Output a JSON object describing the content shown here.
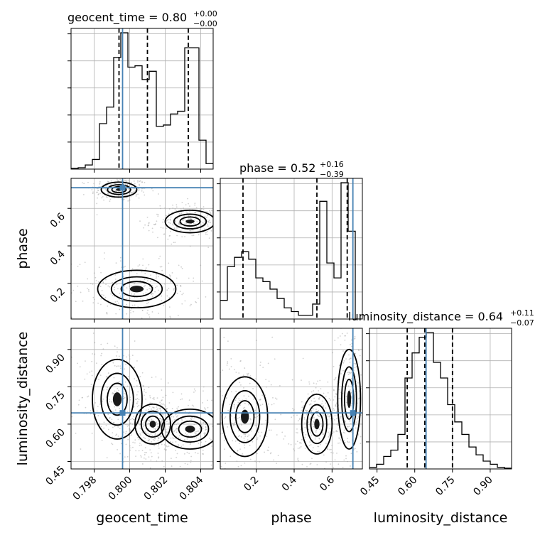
{
  "chart_data": {
    "type": "corner",
    "parameters": [
      "geocent_time",
      "phase",
      "luminosity_distance"
    ],
    "truth": {
      "geocent_time": 0.7996,
      "phase": 0.71,
      "luminosity_distance": 0.645
    },
    "quantiles": {
      "geocent_time": [
        0.7994,
        0.801,
        0.8033
      ],
      "phase": [
        0.13,
        0.52,
        0.68
      ],
      "luminosity_distance": [
        0.57,
        0.64,
        0.75
      ]
    },
    "titles": {
      "geocent_time": {
        "name": "geocent_time",
        "value": "0.80",
        "plus": "+0.00",
        "minus": "−0.00"
      },
      "phase": {
        "name": "phase",
        "value": "0.52",
        "plus": "+0.16",
        "minus": "−0.39"
      },
      "luminosity_distance": {
        "name": "luminosity_distance",
        "value": "0.64",
        "plus": "+0.11",
        "minus": "−0.07"
      }
    },
    "axes": {
      "geocent_time": {
        "range": [
          0.7967,
          0.8047
        ],
        "ticks": [
          0.798,
          0.8,
          0.802,
          0.804
        ],
        "tick_labels": [
          "0.798",
          "0.800",
          "0.802",
          "0.804"
        ]
      },
      "phase": {
        "range": [
          0.01,
          0.76
        ],
        "ticks": [
          0.2,
          0.4,
          0.6
        ],
        "tick_labels": [
          "0.2",
          "0.4",
          "0.6"
        ]
      },
      "luminosity_distance": {
        "range": [
          0.42,
          0.985
        ],
        "ticks": [
          0.45,
          0.6,
          0.75,
          0.9
        ],
        "tick_labels": [
          "0.45",
          "0.60",
          "0.75",
          "0.90"
        ]
      }
    },
    "histograms": {
      "geocent_time": {
        "bin_edges": [
          0.7967,
          0.7971,
          0.7975,
          0.7979,
          0.7983,
          0.7987,
          0.7991,
          0.7995,
          0.7999,
          0.8003,
          0.8007,
          0.8011,
          0.8015,
          0.8019,
          0.8023,
          0.8027,
          0.8031,
          0.8035,
          0.8039,
          0.8043,
          0.8047
        ],
        "counts": [
          0.5,
          1,
          3,
          7,
          33,
          45,
          81,
          99,
          74,
          75,
          65,
          71,
          31,
          32,
          40,
          42,
          88,
          88,
          21,
          4
        ]
      },
      "phase": {
        "bin_edges": [
          0.01,
          0.0475,
          0.085,
          0.1225,
          0.16,
          0.1975,
          0.235,
          0.2725,
          0.31,
          0.3475,
          0.385,
          0.4225,
          0.46,
          0.4975,
          0.535,
          0.5725,
          0.61,
          0.6475,
          0.685,
          0.7225,
          0.76
        ],
        "counts": [
          10,
          28,
          33,
          36,
          32,
          22,
          20,
          16,
          11,
          6,
          4,
          2,
          2,
          8,
          63,
          30,
          22,
          73,
          47,
          0
        ]
      },
      "luminosity_distance": {
        "bin_edges": [
          0.42,
          0.44825,
          0.4765,
          0.50475,
          0.533,
          0.56125,
          0.5895,
          0.61775,
          0.646,
          0.67425,
          0.7025,
          0.73075,
          0.759,
          0.78725,
          0.8155,
          0.84375,
          0.872,
          0.90025,
          0.9285,
          0.95675,
          0.985
        ],
        "counts": [
          1,
          3,
          8,
          12,
          22,
          58,
          74,
          84,
          87,
          68,
          58,
          41,
          30,
          22,
          14,
          9,
          5,
          3,
          1,
          0.5
        ]
      }
    },
    "contours_2d": [
      {
        "x": "geocent_time",
        "y": "phase",
        "modes": [
          [
            0.7994,
            0.7,
            0.0005,
            0.02
          ],
          [
            0.8034,
            0.53,
            0.0007,
            0.03
          ],
          [
            0.8004,
            0.17,
            0.0011,
            0.05
          ]
        ]
      },
      {
        "x": "geocent_time",
        "y": "luminosity_distance",
        "modes": [
          [
            0.7993,
            0.7,
            0.0007,
            0.08
          ],
          [
            0.8013,
            0.6,
            0.0005,
            0.04
          ],
          [
            0.8034,
            0.58,
            0.0008,
            0.04
          ]
        ]
      },
      {
        "x": "phase",
        "y": "luminosity_distance",
        "modes": [
          [
            0.14,
            0.63,
            0.06,
            0.08
          ],
          [
            0.52,
            0.6,
            0.04,
            0.06
          ],
          [
            0.69,
            0.7,
            0.03,
            0.1
          ]
        ]
      }
    ]
  }
}
